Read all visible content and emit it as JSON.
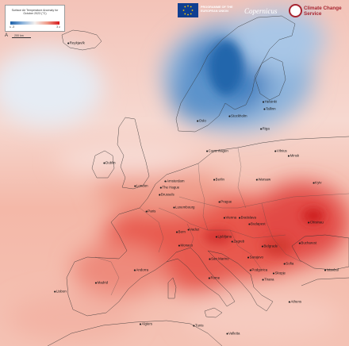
{
  "legend": {
    "title": "Surface Air Temperature Anomaly for October 2023 (°C)",
    "min_label": "≤ -3",
    "max_label": "3 ≥",
    "min_value": -3,
    "max_value": 3,
    "colors": {
      "cold": "#1a5fa8",
      "neutral": "#f4f0ee",
      "warm": "#d7191c"
    }
  },
  "scale_bar": {
    "north": "A",
    "label": "200 km"
  },
  "logos": {
    "eu_text": "PROGRAMME OF THE EUROPEAN UNION",
    "copernicus": "Copernicus",
    "c3s": "Climate Change Service"
  },
  "cities": [
    {
      "id": "reykjavik",
      "name": "Reykjavík"
    },
    {
      "id": "oslo",
      "name": "Oslo"
    },
    {
      "id": "stockholm",
      "name": "Stockholm"
    },
    {
      "id": "helsinki",
      "name": "Helsinki"
    },
    {
      "id": "tallinn",
      "name": "Tallinn"
    },
    {
      "id": "riga",
      "name": "Riga"
    },
    {
      "id": "vilnius",
      "name": "Vilnius"
    },
    {
      "id": "minsk",
      "name": "Minsk"
    },
    {
      "id": "copenhagen",
      "name": "Copenhagen"
    },
    {
      "id": "dublin",
      "name": "Dublin"
    },
    {
      "id": "london",
      "name": "London"
    },
    {
      "id": "amsterdam",
      "name": "Amsterdam"
    },
    {
      "id": "the-hague",
      "name": "The Hague"
    },
    {
      "id": "brussels",
      "name": "Brussels"
    },
    {
      "id": "berlin",
      "name": "Berlin"
    },
    {
      "id": "warsaw",
      "name": "Warsaw"
    },
    {
      "id": "kyiv",
      "name": "Kyiv"
    },
    {
      "id": "luxembourg",
      "name": "Luxembourg"
    },
    {
      "id": "paris",
      "name": "Paris"
    },
    {
      "id": "prague",
      "name": "Prague"
    },
    {
      "id": "vienna",
      "name": "Vienna"
    },
    {
      "id": "bratislava",
      "name": "Bratislava"
    },
    {
      "id": "chisinau",
      "name": "Chisinau"
    },
    {
      "id": "vaduz",
      "name": "Vaduz"
    },
    {
      "id": "bern",
      "name": "Bern"
    },
    {
      "id": "budapest",
      "name": "Budapest"
    },
    {
      "id": "ljubljana",
      "name": "Ljubljana"
    },
    {
      "id": "zagreb",
      "name": "Zagreb"
    },
    {
      "id": "belgrade",
      "name": "Belgrade"
    },
    {
      "id": "bucharest",
      "name": "Bucharest"
    },
    {
      "id": "monaco",
      "name": "Monaco"
    },
    {
      "id": "san-marino",
      "name": "San Marino"
    },
    {
      "id": "sarajevo",
      "name": "Sarajevo"
    },
    {
      "id": "sofia",
      "name": "Sofia"
    },
    {
      "id": "andorra",
      "name": "Andorra"
    },
    {
      "id": "podgorica",
      "name": "Podgorica"
    },
    {
      "id": "skopje",
      "name": "Skopje"
    },
    {
      "id": "rome",
      "name": "Rome"
    },
    {
      "id": "tirana",
      "name": "Tirana"
    },
    {
      "id": "istanbul",
      "name": "Istanbul"
    },
    {
      "id": "madrid",
      "name": "Madrid"
    },
    {
      "id": "lisbon",
      "name": "Lisbon"
    },
    {
      "id": "athens",
      "name": "Athens"
    },
    {
      "id": "algiers",
      "name": "Algiers"
    },
    {
      "id": "tunis",
      "name": "Tunis"
    },
    {
      "id": "valletta",
      "name": "Valletta"
    }
  ]
}
